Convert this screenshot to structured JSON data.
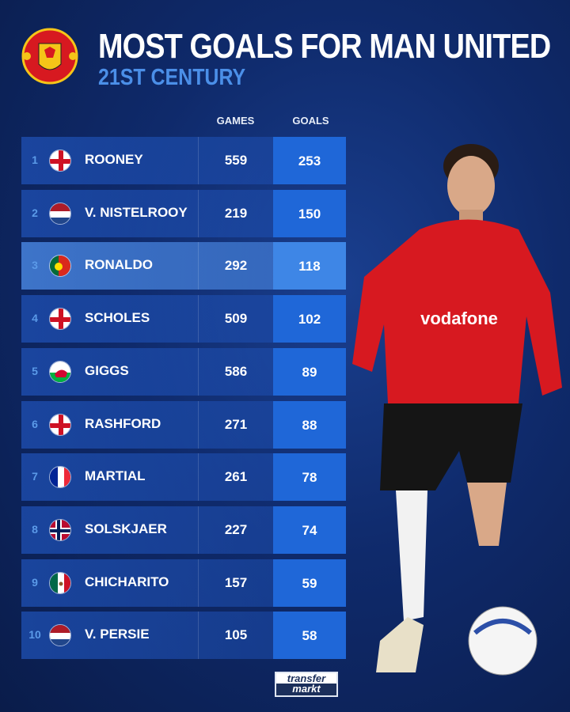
{
  "header": {
    "title": "MOST GOALS FOR MAN UNITED",
    "subtitle": "21ST CENTURY",
    "crest": "manchester-united-crest"
  },
  "columns": {
    "games": "GAMES",
    "goals": "GOALS"
  },
  "rows": [
    {
      "rank": "1",
      "flag": "england",
      "name": "ROONEY",
      "games": "559",
      "goals": "253"
    },
    {
      "rank": "2",
      "flag": "netherlands",
      "name": "V. NISTELROOY",
      "games": "219",
      "goals": "150"
    },
    {
      "rank": "3",
      "flag": "portugal",
      "name": "RONALDO",
      "games": "292",
      "goals": "118",
      "highlighted": true
    },
    {
      "rank": "4",
      "flag": "england",
      "name": "SCHOLES",
      "games": "509",
      "goals": "102"
    },
    {
      "rank": "5",
      "flag": "wales",
      "name": "GIGGS",
      "games": "586",
      "goals": "89"
    },
    {
      "rank": "6",
      "flag": "england",
      "name": "RASHFORD",
      "games": "271",
      "goals": "88"
    },
    {
      "rank": "7",
      "flag": "france",
      "name": "MARTIAL",
      "games": "261",
      "goals": "78"
    },
    {
      "rank": "8",
      "flag": "norway",
      "name": "SOLSKJAER",
      "games": "227",
      "goals": "74"
    },
    {
      "rank": "9",
      "flag": "mexico",
      "name": "CHICHARITO",
      "games": "157",
      "goals": "59"
    },
    {
      "rank": "10",
      "flag": "netherlands",
      "name": "V. PERSIE",
      "games": "105",
      "goals": "58"
    }
  ],
  "footer": {
    "logo_line1": "transfer",
    "logo_line2": "markt"
  },
  "colors": {
    "accent": "#4b8fe8",
    "goals_cell": "#1f67d8",
    "background": "#0f2a6b",
    "shirt": "#d71920"
  }
}
